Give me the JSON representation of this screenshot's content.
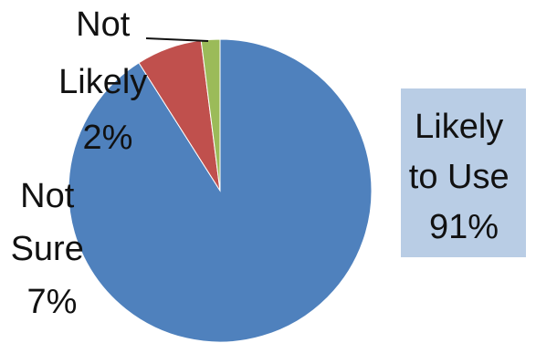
{
  "chart_data": {
    "type": "pie",
    "title": "",
    "start_angle_deg": 0,
    "direction": "clockwise",
    "slices": [
      {
        "name": "Likely to Use",
        "value": 91,
        "color": "#4f81bd",
        "label_lines": [
          "Likely",
          "to Use",
          "91%"
        ],
        "label_style": "box"
      },
      {
        "name": "Not Sure",
        "value": 7,
        "color": "#c0504d",
        "label_lines": [
          "Not",
          "Sure",
          "7%"
        ],
        "label_style": "plain"
      },
      {
        "name": "Not Likely",
        "value": 2,
        "color": "#9bbb59",
        "label_lines": [
          "Not",
          "Likely",
          "2%"
        ],
        "label_style": "leader"
      }
    ],
    "legend": "none"
  }
}
